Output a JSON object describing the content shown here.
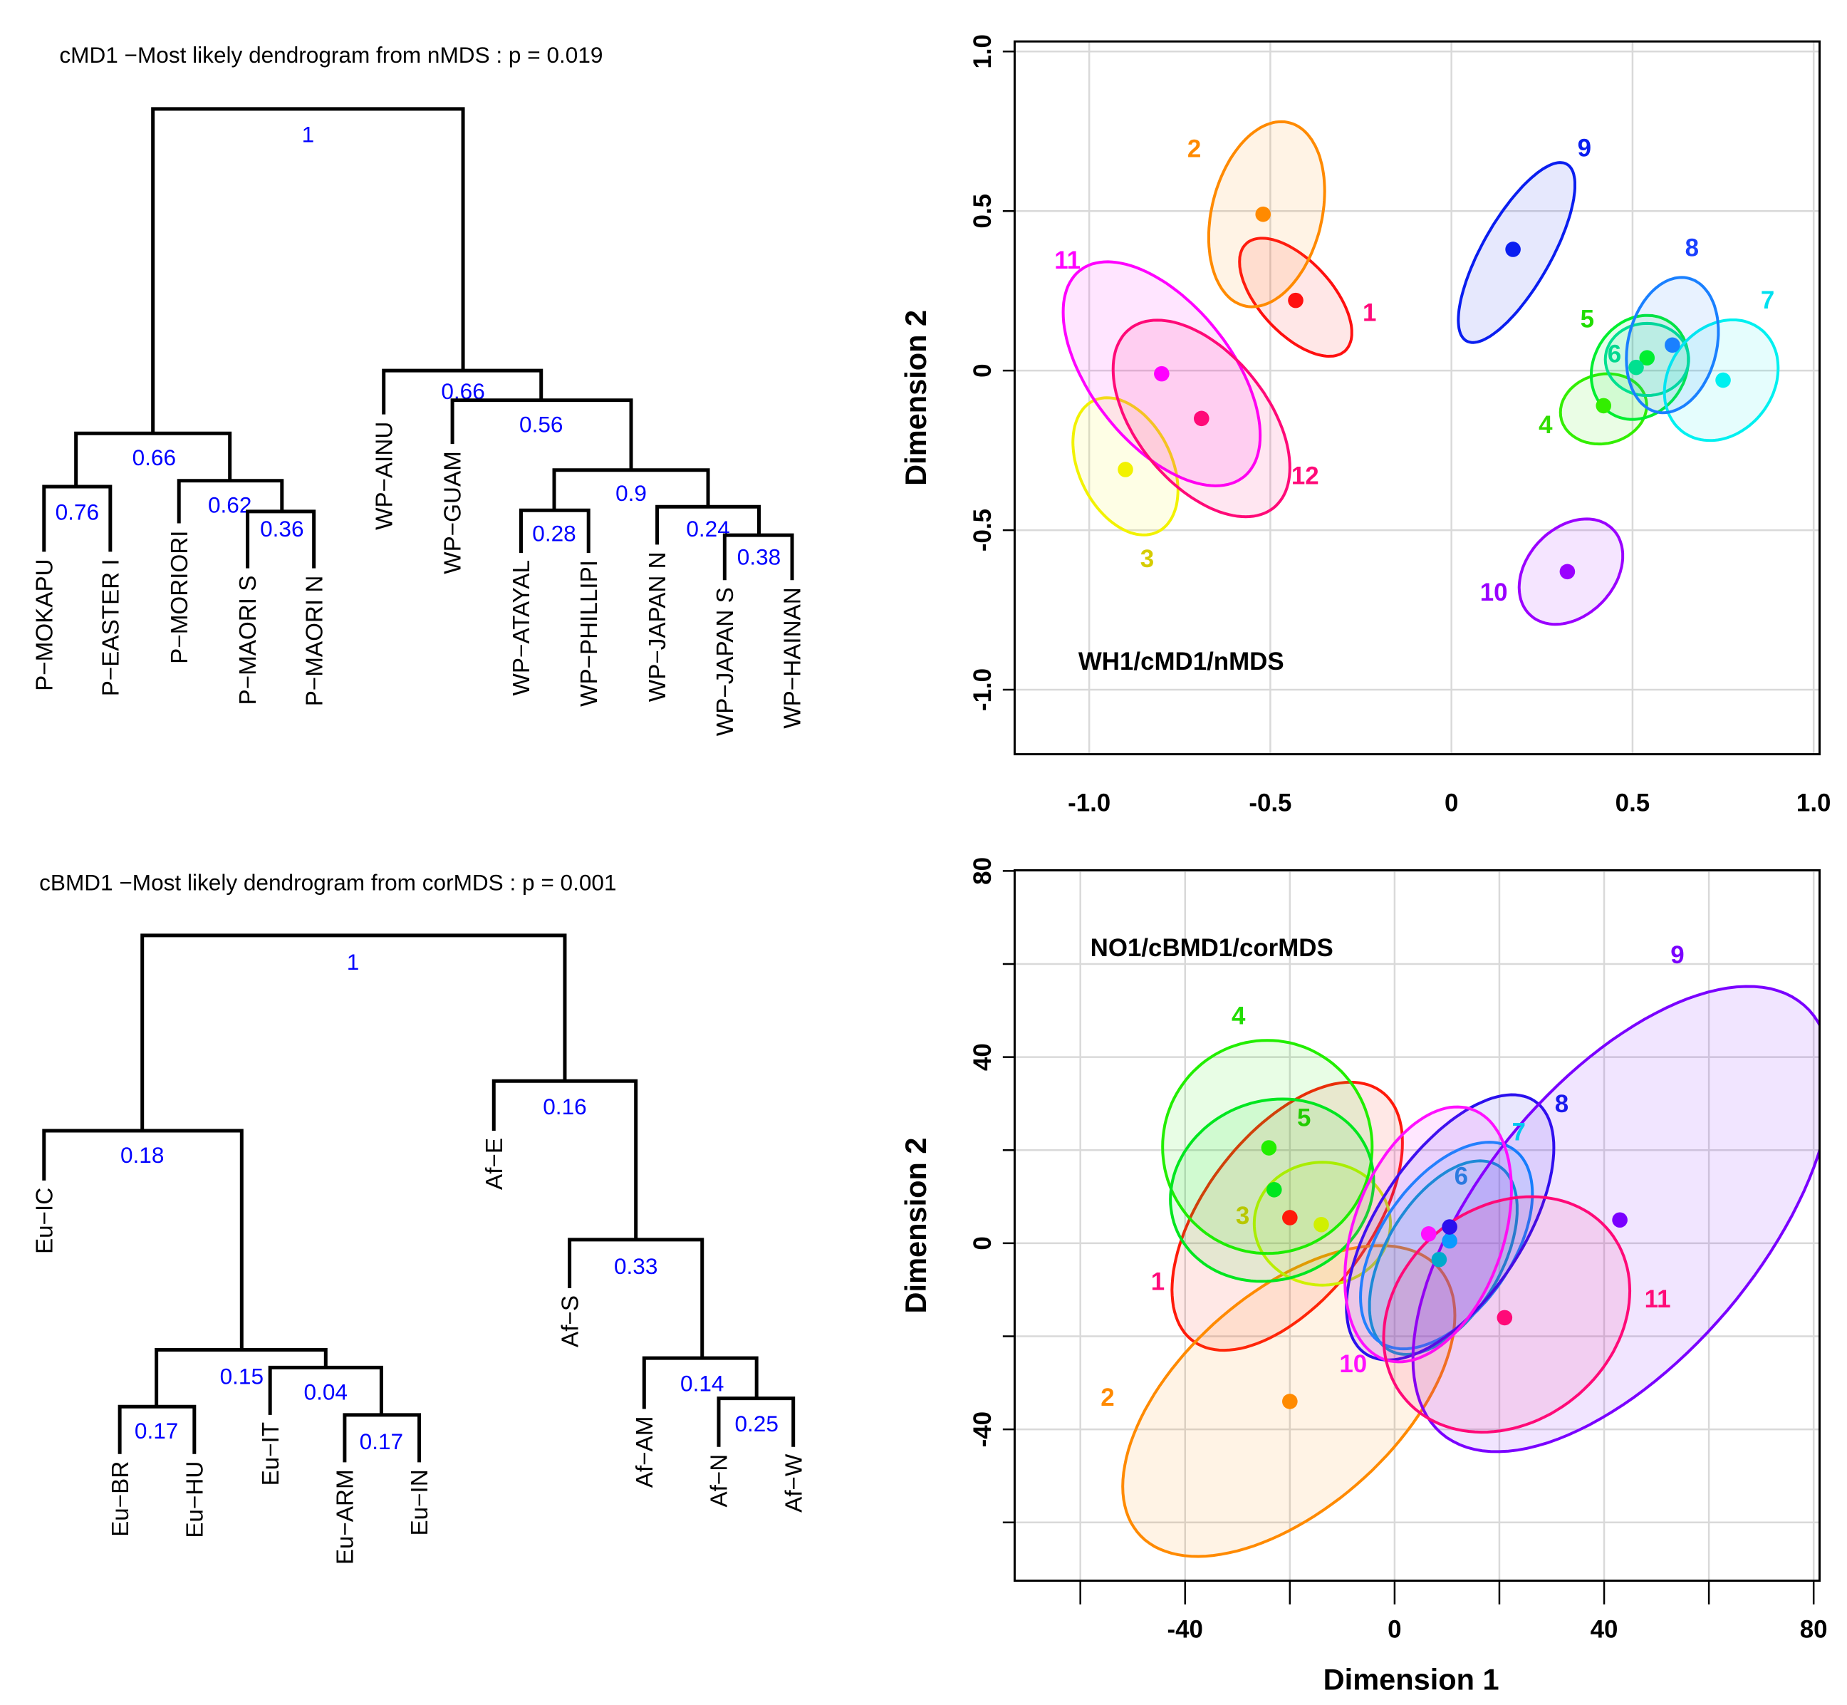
{
  "chart_data": [
    {
      "type": "dendrogram",
      "title": "cMD1 −Most likely dendrogram from nMDS : p = 0.019",
      "leaves": [
        "P−MOKAPU",
        "P−EASTER I",
        "P−MORIORI",
        "P−MAORI S",
        "P−MAORI N",
        "WP−AINU",
        "WP−GUAM",
        "WP−ATAYAL",
        "WP−PHILLIPI",
        "WP−JAPAN N",
        "WP−JAPAN S",
        "WP−HAINAN"
      ],
      "support": [
        "1",
        "0.66",
        "0.76",
        "0.62",
        "0.36",
        "0.66",
        "0.56",
        "0.9",
        "0.28",
        "0.24",
        "0.38"
      ]
    },
    {
      "type": "scatter",
      "annotation": "WH1/cMD1/nMDS",
      "xlabel": "",
      "ylabel": "Dimension 2",
      "xlim": [
        -1.2,
        1.02
      ],
      "ylim": [
        -1.2,
        1.03
      ],
      "xticks": [
        "-1.0",
        "-0.5",
        "0",
        "0.5",
        "1.0"
      ],
      "yticks": [
        "1.0",
        "0.5",
        "0",
        "-0.5",
        "-1.0"
      ],
      "grid": true,
      "groups": [
        {
          "label": "1",
          "x": -0.43,
          "y": 0.22,
          "color": "#ff1010",
          "label_color": "#ff0a7a",
          "ellipse": {
            "cx": -0.43,
            "cy": 0.23,
            "hw": 0.155,
            "hh": 0.185,
            "r": -0.6
          }
        },
        {
          "label": "2",
          "x": -0.52,
          "y": 0.49,
          "color": "#ff8a00",
          "label_color": "#ff8a00",
          "ellipse": {
            "cx": -0.51,
            "cy": 0.49,
            "hw": 0.16,
            "hh": 0.29,
            "r": 0.25
          }
        },
        {
          "label": "3",
          "x": -0.9,
          "y": -0.31,
          "color": "#f2f200",
          "label_color": "#d6cc00",
          "ellipse": {
            "cx": -0.9,
            "cy": -0.3,
            "hw": 0.145,
            "hh": 0.215,
            "r": -0.35
          }
        },
        {
          "label": "4",
          "x": 0.42,
          "y": -0.11,
          "color": "#33ee00",
          "label_color": "#33dd00",
          "ellipse": {
            "cx": 0.42,
            "cy": -0.12,
            "hw": 0.119,
            "hh": 0.11,
            "r": 0.1
          }
        },
        {
          "label": "5",
          "x": 0.54,
          "y": 0.04,
          "color": "#00ee30",
          "label_color": "#22dd00",
          "ellipse": {
            "cx": 0.52,
            "cy": 0.01,
            "hw": 0.134,
            "hh": 0.163,
            "r": 0.15
          }
        },
        {
          "label": "6",
          "x": 0.51,
          "y": 0.01,
          "color": "#00e090",
          "label_color": "#00d890",
          "ellipse": {
            "cx": 0.54,
            "cy": 0.035,
            "hw": 0.115,
            "hh": 0.113,
            "r": 0
          }
        },
        {
          "label": "7",
          "x": 0.75,
          "y": -0.03,
          "color": "#00f0f0",
          "label_color": "#00e0f0",
          "ellipse": {
            "cx": 0.745,
            "cy": -0.03,
            "hw": 0.157,
            "hh": 0.189,
            "r": 0.2
          }
        },
        {
          "label": "8",
          "x": 0.61,
          "y": 0.08,
          "color": "#1a80ff",
          "label_color": "#1a40ff",
          "ellipse": {
            "cx": 0.61,
            "cy": 0.08,
            "hw": 0.127,
            "hh": 0.212,
            "r": 0.2
          }
        },
        {
          "label": "9",
          "x": 0.17,
          "y": 0.38,
          "color": "#0a1ef0",
          "label_color": "#0a1ef0",
          "ellipse": {
            "cx": 0.18,
            "cy": 0.37,
            "hw": 0.161,
            "hh": 0.282,
            "r": 0.75
          }
        },
        {
          "label": "10",
          "x": 0.32,
          "y": -0.63,
          "color": "#9a00ff",
          "label_color": "#9a00ff",
          "ellipse": {
            "cx": 0.33,
            "cy": -0.63,
            "hw": 0.143,
            "hh": 0.165,
            "r": 0.3
          }
        },
        {
          "label": "11",
          "x": -0.8,
          "y": -0.01,
          "color": "#ff00ff",
          "label_color": "#ff00ff",
          "ellipse": {
            "cx": -0.8,
            "cy": -0.01,
            "hw": 0.272,
            "hh": 0.351,
            "r": -0.55
          }
        },
        {
          "label": "12",
          "x": -0.69,
          "y": -0.15,
          "color": "#ff0a78",
          "label_color": "#ff0a78",
          "ellipse": {
            "cx": -0.69,
            "cy": -0.15,
            "hw": 0.244,
            "hh": 0.308,
            "r": -0.5
          }
        }
      ]
    },
    {
      "type": "dendrogram",
      "title": "cBMD1 −Most likely dendrogram from corMDS : p = 0.001",
      "leaves": [
        "Eu−IC",
        "Eu−BR",
        "Eu−HU",
        "Eu−IT",
        "Eu−ARM",
        "Eu−IN",
        "Af−E",
        "Af−S",
        "Af−AM",
        "Af−N",
        "Af−W"
      ],
      "support": [
        "1",
        "0.18",
        "0.15",
        "0.17",
        "0.04",
        "0.17",
        "0.16",
        "0.33",
        "0.14",
        "0.25"
      ]
    },
    {
      "type": "scatter",
      "annotation": "NO1/cBMD1/corMDS",
      "xlabel": "Dimension 1",
      "ylabel": "Dimension 2",
      "xlim": [
        -72,
        81
      ],
      "ylim": [
        -72,
        81
      ],
      "xticks": [
        "-40",
        "0",
        "40",
        "80"
      ],
      "yticks": [
        "80",
        "40",
        "0",
        "-40"
      ],
      "grid": true,
      "groups": [
        {
          "label": "1",
          "x": -20,
          "y": 5.5,
          "color": "#ff1a0a",
          "label_color": "#ff0a7a",
          "ellipse": {
            "cx": -20.5,
            "cy": 5.8,
            "hw": 22,
            "hh": 28.8,
            "r": 0.55
          }
        },
        {
          "label": "2",
          "x": -20,
          "y": -34,
          "color": "#ff8a00",
          "label_color": "#ff8a00",
          "ellipse": {
            "cx": -20.2,
            "cy": -33.9,
            "hw": 31.7,
            "hh": 33.4,
            "r": 0.55
          }
        },
        {
          "label": "3",
          "x": -14,
          "y": 4,
          "color": "#d0f000",
          "label_color": "#b8c800",
          "ellipse": {
            "cx": -13.8,
            "cy": 4.2,
            "hw": 13,
            "hh": 13.2,
            "r": 0
          }
        },
        {
          "label": "4",
          "x": -24,
          "y": 20.5,
          "color": "#22ee00",
          "label_color": "#22dd00",
          "ellipse": {
            "cx": -24.3,
            "cy": 20.7,
            "hw": 20,
            "hh": 22.9,
            "r": 0
          }
        },
        {
          "label": "5",
          "x": -23,
          "y": 11.5,
          "color": "#00e620",
          "label_color": "#22cc00",
          "ellipse": {
            "cx": -23.4,
            "cy": 11.4,
            "hw": 19.4,
            "hh": 19.6,
            "r": 0.1
          }
        },
        {
          "label": "6",
          "x": 8.5,
          "y": -3.5,
          "color": "#00aacc",
          "label_color": "#2a7ae0",
          "ellipse": {
            "cx": 9.3,
            "cy": -3.1,
            "hw": 14.1,
            "hh": 20.8,
            "r": 0.5
          }
        },
        {
          "label": "7",
          "x": 10.5,
          "y": 0.5,
          "color": "#0a9aff",
          "label_color": "#00c8f0",
          "ellipse": {
            "cx": 9.9,
            "cy": -0.5,
            "hw": 16.4,
            "hh": 22.2,
            "r": 0.5
          }
        },
        {
          "label": "8",
          "x": 10.5,
          "y": 3.5,
          "color": "#2a10ee",
          "label_color": "#1a1aee",
          "ellipse": {
            "cx": 10.6,
            "cy": 3.4,
            "hw": 19.8,
            "hh": 28.5,
            "r": 0.6
          }
        },
        {
          "label": "9",
          "x": 43,
          "y": 5,
          "color": "#7a00ff",
          "label_color": "#7a00ff",
          "ellipse": {
            "cx": 43.5,
            "cy": 5.2,
            "hw": 40,
            "hh": 50,
            "r": 0.6
          }
        },
        {
          "label": "10",
          "x": 6.5,
          "y": 2,
          "color": "#ff10ff",
          "label_color": "#ff10ff",
          "ellipse": {
            "cx": 6.4,
            "cy": 1.9,
            "hw": 15.9,
            "hh": 27.4,
            "r": 0.35
          }
        },
        {
          "label": "11",
          "x": 21,
          "y": -16,
          "color": "#ff0a78",
          "label_color": "#ff0a78",
          "ellipse": {
            "cx": 21.4,
            "cy": -15.3,
            "hw": 23.5,
            "hh": 25.3,
            "r": 0.2
          }
        }
      ]
    }
  ]
}
